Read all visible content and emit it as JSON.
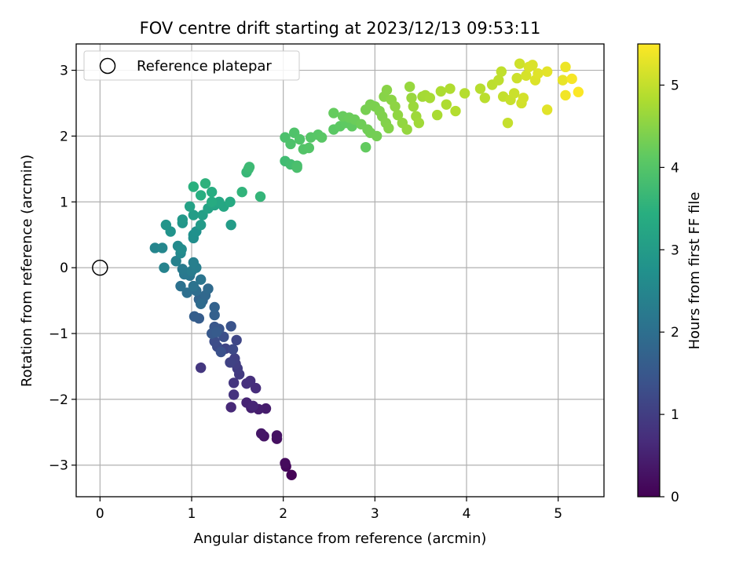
{
  "chart_data": {
    "type": "scatter",
    "title": "FOV centre drift starting at 2023/12/13 09:53:11",
    "xlabel": "Angular distance from reference (arcmin)",
    "ylabel": "Rotation from reference (arcmin)",
    "xlim": [
      -0.26,
      5.5
    ],
    "ylim": [
      -3.48,
      3.4
    ],
    "xticks": [
      0,
      1,
      2,
      3,
      4,
      5
    ],
    "yticks": [
      -3,
      -2,
      -1,
      0,
      1,
      2,
      3
    ],
    "grid": true,
    "legend": {
      "position": "upper-left",
      "entries": [
        "Reference platepar"
      ]
    },
    "reference_point": {
      "x": 0,
      "y": 0
    },
    "colorbar": {
      "label": "Hours from first FF file",
      "colormap": "viridis",
      "range": [
        0,
        5.5
      ],
      "ticks": [
        0,
        1,
        2,
        3,
        4,
        5
      ]
    },
    "points": [
      {
        "x": 2.09,
        "y": -3.15,
        "c": 0.03
      },
      {
        "x": 2.03,
        "y": -3.02,
        "c": 0.1
      },
      {
        "x": 2.02,
        "y": -2.97,
        "c": 0.15
      },
      {
        "x": 1.93,
        "y": -2.6,
        "c": 0.22
      },
      {
        "x": 1.93,
        "y": -2.55,
        "c": 0.26
      },
      {
        "x": 1.79,
        "y": -2.56,
        "c": 0.3
      },
      {
        "x": 1.76,
        "y": -2.52,
        "c": 0.34
      },
      {
        "x": 1.81,
        "y": -2.14,
        "c": 0.42
      },
      {
        "x": 1.73,
        "y": -2.15,
        "c": 0.46
      },
      {
        "x": 1.65,
        "y": -2.13,
        "c": 0.5
      },
      {
        "x": 1.6,
        "y": -2.05,
        "c": 0.55
      },
      {
        "x": 1.67,
        "y": -2.1,
        "c": 0.58
      },
      {
        "x": 1.43,
        "y": -2.12,
        "c": 0.62
      },
      {
        "x": 1.7,
        "y": -1.83,
        "c": 0.68
      },
      {
        "x": 1.64,
        "y": -1.72,
        "c": 0.72
      },
      {
        "x": 1.6,
        "y": -1.76,
        "c": 0.76
      },
      {
        "x": 1.46,
        "y": -1.93,
        "c": 0.8
      },
      {
        "x": 1.46,
        "y": -1.75,
        "c": 0.85
      },
      {
        "x": 1.1,
        "y": -1.52,
        "c": 0.88
      },
      {
        "x": 1.52,
        "y": -1.62,
        "c": 0.92
      },
      {
        "x": 1.5,
        "y": -1.53,
        "c": 0.96
      },
      {
        "x": 1.48,
        "y": -1.46,
        "c": 1.0
      },
      {
        "x": 1.47,
        "y": -1.38,
        "c": 1.04
      },
      {
        "x": 1.42,
        "y": -1.44,
        "c": 1.08
      },
      {
        "x": 1.37,
        "y": -1.23,
        "c": 1.12
      },
      {
        "x": 1.49,
        "y": -1.1,
        "c": 1.16
      },
      {
        "x": 1.45,
        "y": -1.24,
        "c": 1.2
      },
      {
        "x": 1.28,
        "y": -1.2,
        "c": 1.24
      },
      {
        "x": 1.25,
        "y": -1.12,
        "c": 1.28
      },
      {
        "x": 1.35,
        "y": -1.05,
        "c": 1.32
      },
      {
        "x": 1.32,
        "y": -1.28,
        "c": 1.36
      },
      {
        "x": 1.43,
        "y": -0.89,
        "c": 1.4
      },
      {
        "x": 1.3,
        "y": -0.93,
        "c": 1.44
      },
      {
        "x": 1.25,
        "y": -0.9,
        "c": 1.48
      },
      {
        "x": 1.22,
        "y": -1.0,
        "c": 1.52
      },
      {
        "x": 1.27,
        "y": -0.98,
        "c": 1.56
      },
      {
        "x": 1.08,
        "y": -0.77,
        "c": 1.6
      },
      {
        "x": 1.03,
        "y": -0.74,
        "c": 1.64
      },
      {
        "x": 1.25,
        "y": -0.72,
        "c": 1.68
      },
      {
        "x": 1.25,
        "y": -0.6,
        "c": 1.72
      },
      {
        "x": 1.08,
        "y": -0.48,
        "c": 1.76
      },
      {
        "x": 1.12,
        "y": -0.5,
        "c": 1.8
      },
      {
        "x": 1.15,
        "y": -0.42,
        "c": 1.84
      },
      {
        "x": 1.18,
        "y": -0.32,
        "c": 1.88
      },
      {
        "x": 1.1,
        "y": -0.55,
        "c": 1.92
      },
      {
        "x": 1.05,
        "y": -0.35,
        "c": 1.96
      },
      {
        "x": 0.95,
        "y": -0.38,
        "c": 2.0
      },
      {
        "x": 0.88,
        "y": -0.28,
        "c": 2.04
      },
      {
        "x": 1.02,
        "y": -0.28,
        "c": 2.08
      },
      {
        "x": 1.1,
        "y": -0.18,
        "c": 2.12
      },
      {
        "x": 0.98,
        "y": -0.12,
        "c": 2.16
      },
      {
        "x": 0.92,
        "y": -0.1,
        "c": 2.2
      },
      {
        "x": 0.9,
        "y": -0.02,
        "c": 2.24
      },
      {
        "x": 1.0,
        "y": -0.05,
        "c": 2.28
      },
      {
        "x": 1.05,
        "y": 0.0,
        "c": 2.32
      },
      {
        "x": 1.02,
        "y": 0.08,
        "c": 2.36
      },
      {
        "x": 0.83,
        "y": 0.1,
        "c": 2.4
      },
      {
        "x": 0.7,
        "y": 0.0,
        "c": 2.44
      },
      {
        "x": 0.6,
        "y": 0.3,
        "c": 2.48
      },
      {
        "x": 0.68,
        "y": 0.3,
        "c": 2.52
      },
      {
        "x": 0.88,
        "y": 0.22,
        "c": 2.56
      },
      {
        "x": 0.85,
        "y": 0.33,
        "c": 2.6
      },
      {
        "x": 0.89,
        "y": 0.28,
        "c": 2.64
      },
      {
        "x": 1.02,
        "y": 0.45,
        "c": 2.68
      },
      {
        "x": 1.02,
        "y": 0.5,
        "c": 2.72
      },
      {
        "x": 1.05,
        "y": 0.55,
        "c": 2.76
      },
      {
        "x": 0.77,
        "y": 0.55,
        "c": 2.8
      },
      {
        "x": 0.72,
        "y": 0.65,
        "c": 2.84
      },
      {
        "x": 0.9,
        "y": 0.68,
        "c": 2.88
      },
      {
        "x": 0.9,
        "y": 0.73,
        "c": 2.92
      },
      {
        "x": 1.1,
        "y": 0.65,
        "c": 2.96
      },
      {
        "x": 1.43,
        "y": 0.65,
        "c": 3.0
      },
      {
        "x": 1.02,
        "y": 0.8,
        "c": 3.04
      },
      {
        "x": 1.12,
        "y": 0.8,
        "c": 3.08
      },
      {
        "x": 0.98,
        "y": 0.93,
        "c": 3.12
      },
      {
        "x": 1.18,
        "y": 0.9,
        "c": 3.16
      },
      {
        "x": 1.25,
        "y": 0.95,
        "c": 3.2
      },
      {
        "x": 1.35,
        "y": 0.93,
        "c": 3.24
      },
      {
        "x": 1.3,
        "y": 1.0,
        "c": 3.28
      },
      {
        "x": 1.42,
        "y": 1.0,
        "c": 3.32
      },
      {
        "x": 1.22,
        "y": 1.0,
        "c": 3.36
      },
      {
        "x": 1.22,
        "y": 1.15,
        "c": 3.4
      },
      {
        "x": 1.1,
        "y": 1.1,
        "c": 3.44
      },
      {
        "x": 1.02,
        "y": 1.23,
        "c": 3.48
      },
      {
        "x": 1.15,
        "y": 1.28,
        "c": 3.52
      },
      {
        "x": 1.55,
        "y": 1.15,
        "c": 3.56
      },
      {
        "x": 1.75,
        "y": 1.08,
        "c": 3.6
      },
      {
        "x": 1.6,
        "y": 1.45,
        "c": 3.64
      },
      {
        "x": 1.62,
        "y": 1.5,
        "c": 3.68
      },
      {
        "x": 1.63,
        "y": 1.53,
        "c": 3.72
      },
      {
        "x": 2.02,
        "y": 1.62,
        "c": 3.76
      },
      {
        "x": 2.08,
        "y": 1.57,
        "c": 3.8
      },
      {
        "x": 2.15,
        "y": 1.55,
        "c": 3.84
      },
      {
        "x": 2.15,
        "y": 1.52,
        "c": 3.88
      },
      {
        "x": 2.02,
        "y": 1.98,
        "c": 3.9
      },
      {
        "x": 2.08,
        "y": 1.88,
        "c": 3.92
      },
      {
        "x": 2.12,
        "y": 2.05,
        "c": 3.94
      },
      {
        "x": 2.18,
        "y": 1.95,
        "c": 3.96
      },
      {
        "x": 2.22,
        "y": 1.8,
        "c": 3.98
      },
      {
        "x": 2.28,
        "y": 1.82,
        "c": 4.0
      },
      {
        "x": 2.3,
        "y": 1.98,
        "c": 4.02
      },
      {
        "x": 2.38,
        "y": 2.02,
        "c": 4.04
      },
      {
        "x": 2.42,
        "y": 1.98,
        "c": 4.06
      },
      {
        "x": 2.55,
        "y": 2.1,
        "c": 4.08
      },
      {
        "x": 2.62,
        "y": 2.15,
        "c": 4.1
      },
      {
        "x": 2.68,
        "y": 2.2,
        "c": 4.12
      },
      {
        "x": 2.75,
        "y": 2.15,
        "c": 4.14
      },
      {
        "x": 2.9,
        "y": 1.83,
        "c": 4.16
      },
      {
        "x": 2.55,
        "y": 2.35,
        "c": 4.18
      },
      {
        "x": 2.65,
        "y": 2.3,
        "c": 4.2
      },
      {
        "x": 2.72,
        "y": 2.28,
        "c": 4.22
      },
      {
        "x": 2.78,
        "y": 2.25,
        "c": 4.24
      },
      {
        "x": 2.85,
        "y": 2.18,
        "c": 4.26
      },
      {
        "x": 2.92,
        "y": 2.1,
        "c": 4.28
      },
      {
        "x": 2.95,
        "y": 2.05,
        "c": 4.3
      },
      {
        "x": 3.02,
        "y": 2.0,
        "c": 4.32
      },
      {
        "x": 2.9,
        "y": 2.4,
        "c": 4.34
      },
      {
        "x": 2.95,
        "y": 2.48,
        "c": 4.36
      },
      {
        "x": 3.0,
        "y": 2.45,
        "c": 4.38
      },
      {
        "x": 3.05,
        "y": 2.38,
        "c": 4.4
      },
      {
        "x": 3.08,
        "y": 2.3,
        "c": 4.42
      },
      {
        "x": 3.12,
        "y": 2.2,
        "c": 4.44
      },
      {
        "x": 3.15,
        "y": 2.12,
        "c": 4.46
      },
      {
        "x": 3.1,
        "y": 2.6,
        "c": 4.48
      },
      {
        "x": 3.13,
        "y": 2.7,
        "c": 4.5
      },
      {
        "x": 3.18,
        "y": 2.55,
        "c": 4.52
      },
      {
        "x": 3.22,
        "y": 2.45,
        "c": 4.54
      },
      {
        "x": 3.25,
        "y": 2.32,
        "c": 4.56
      },
      {
        "x": 3.3,
        "y": 2.2,
        "c": 4.58
      },
      {
        "x": 3.35,
        "y": 2.1,
        "c": 4.6
      },
      {
        "x": 3.38,
        "y": 2.75,
        "c": 4.62
      },
      {
        "x": 3.4,
        "y": 2.58,
        "c": 4.64
      },
      {
        "x": 3.42,
        "y": 2.45,
        "c": 4.66
      },
      {
        "x": 3.45,
        "y": 2.3,
        "c": 4.68
      },
      {
        "x": 3.48,
        "y": 2.2,
        "c": 4.7
      },
      {
        "x": 3.52,
        "y": 2.6,
        "c": 4.72
      },
      {
        "x": 3.55,
        "y": 2.62,
        "c": 4.74
      },
      {
        "x": 3.6,
        "y": 2.58,
        "c": 4.76
      },
      {
        "x": 3.68,
        "y": 2.32,
        "c": 4.78
      },
      {
        "x": 3.72,
        "y": 2.68,
        "c": 4.8
      },
      {
        "x": 3.78,
        "y": 2.48,
        "c": 4.82
      },
      {
        "x": 3.82,
        "y": 2.72,
        "c": 4.84
      },
      {
        "x": 3.88,
        "y": 2.38,
        "c": 4.86
      },
      {
        "x": 3.98,
        "y": 2.65,
        "c": 4.88
      },
      {
        "x": 4.15,
        "y": 2.72,
        "c": 4.9
      },
      {
        "x": 4.2,
        "y": 2.58,
        "c": 4.92
      },
      {
        "x": 4.28,
        "y": 2.78,
        "c": 4.94
      },
      {
        "x": 4.35,
        "y": 2.85,
        "c": 4.96
      },
      {
        "x": 4.38,
        "y": 2.98,
        "c": 4.98
      },
      {
        "x": 4.4,
        "y": 2.6,
        "c": 5.0
      },
      {
        "x": 4.45,
        "y": 2.2,
        "c": 5.02
      },
      {
        "x": 4.48,
        "y": 2.55,
        "c": 5.04
      },
      {
        "x": 4.52,
        "y": 2.65,
        "c": 5.06
      },
      {
        "x": 4.55,
        "y": 2.88,
        "c": 5.08
      },
      {
        "x": 4.58,
        "y": 3.1,
        "c": 5.1
      },
      {
        "x": 4.6,
        "y": 2.5,
        "c": 5.12
      },
      {
        "x": 4.62,
        "y": 2.58,
        "c": 5.14
      },
      {
        "x": 4.65,
        "y": 2.92,
        "c": 5.16
      },
      {
        "x": 4.68,
        "y": 3.05,
        "c": 5.18
      },
      {
        "x": 4.72,
        "y": 3.08,
        "c": 5.2
      },
      {
        "x": 4.75,
        "y": 2.85,
        "c": 5.22
      },
      {
        "x": 4.78,
        "y": 2.95,
        "c": 5.24
      },
      {
        "x": 4.88,
        "y": 2.4,
        "c": 5.26
      },
      {
        "x": 4.88,
        "y": 2.98,
        "c": 5.28
      },
      {
        "x": 5.05,
        "y": 2.85,
        "c": 5.32
      },
      {
        "x": 5.08,
        "y": 3.05,
        "c": 5.36
      },
      {
        "x": 5.08,
        "y": 2.62,
        "c": 5.4
      },
      {
        "x": 5.15,
        "y": 2.87,
        "c": 5.44
      },
      {
        "x": 5.22,
        "y": 2.67,
        "c": 5.48
      }
    ]
  }
}
